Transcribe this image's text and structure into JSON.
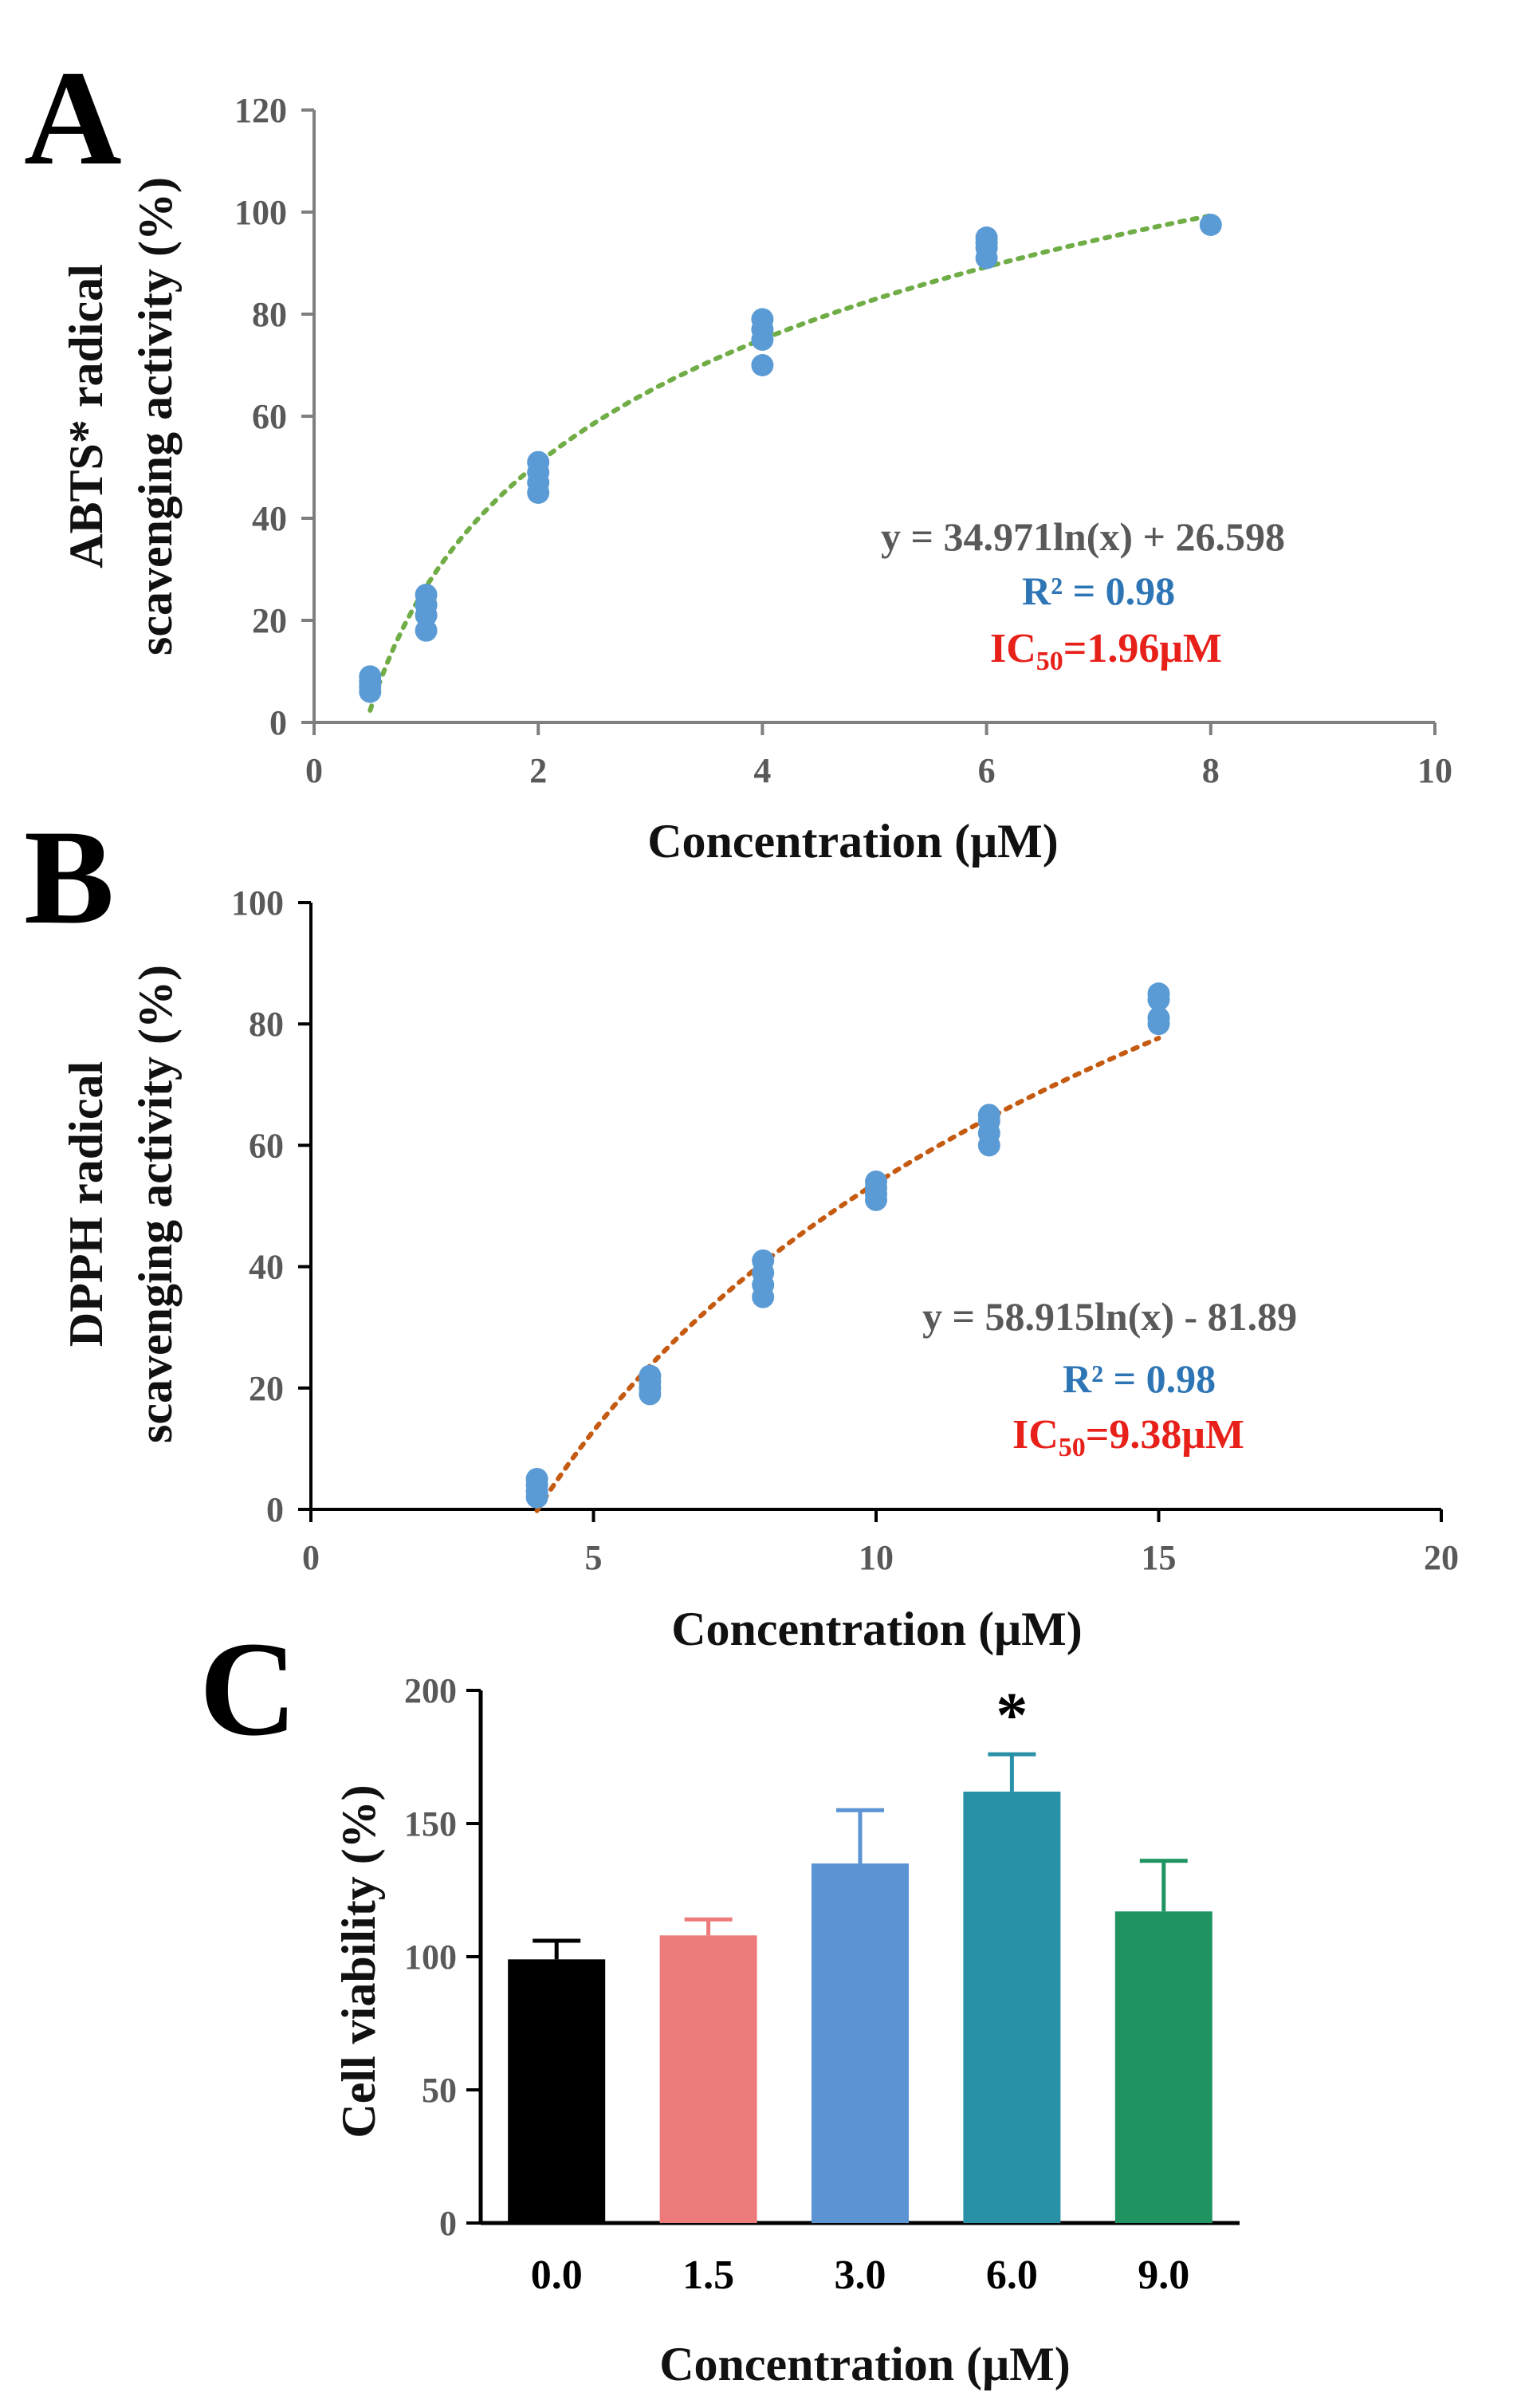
{
  "colors": {
    "point": "#5b9bd5",
    "trend_a": "#70ad47",
    "trend_b": "#c55a11",
    "bar_error": "#000000"
  },
  "chart_data": [
    {
      "panel": "A",
      "type": "scatter",
      "title": "",
      "xlabel": "Concentration (μM)",
      "ylabel": [
        "ABTS* radical",
        "scavenging activity (%)"
      ],
      "xlim": [
        0,
        10
      ],
      "ylim": [
        0,
        120
      ],
      "xticks": [
        0,
        2,
        4,
        6,
        8,
        10
      ],
      "yticks": [
        0,
        20,
        40,
        60,
        80,
        100,
        120
      ],
      "series": [
        {
          "name": "ABTS* scavenging",
          "points": [
            [
              0.5,
              6
            ],
            [
              0.5,
              7
            ],
            [
              0.5,
              8
            ],
            [
              0.5,
              9
            ],
            [
              1,
              18
            ],
            [
              1,
              21
            ],
            [
              1,
              23
            ],
            [
              1,
              25
            ],
            [
              2,
              45
            ],
            [
              2,
              47
            ],
            [
              2,
              49
            ],
            [
              2,
              51
            ],
            [
              4,
              70
            ],
            [
              4,
              75
            ],
            [
              4,
              77
            ],
            [
              4,
              79
            ],
            [
              6,
              91
            ],
            [
              6,
              93
            ],
            [
              6,
              94
            ],
            [
              6,
              95
            ],
            [
              8,
              97.5
            ]
          ]
        }
      ],
      "trendline": {
        "type": "log",
        "a": 34.971,
        "b": 26.598,
        "x_range": [
          0.5,
          8
        ]
      },
      "annotations": {
        "equation": "y = 34.971ln(x) + 26.598",
        "r2": "R² = 0.98",
        "ic50_prefix": "IC",
        "ic50_sub": "50",
        "ic50_value": "=1.96μM"
      }
    },
    {
      "panel": "B",
      "type": "scatter",
      "title": "",
      "xlabel": "Concentration (μM)",
      "ylabel": [
        "DPPH radical",
        "scavenging activity (%)"
      ],
      "xlim": [
        0,
        20
      ],
      "ylim": [
        0,
        100
      ],
      "xticks": [
        0,
        5,
        10,
        15,
        20
      ],
      "yticks": [
        0,
        20,
        40,
        60,
        80,
        100
      ],
      "series": [
        {
          "name": "DPPH scavenging",
          "points": [
            [
              4,
              2
            ],
            [
              4,
              3
            ],
            [
              4,
              4
            ],
            [
              4,
              5
            ],
            [
              6,
              19
            ],
            [
              6,
              20
            ],
            [
              6,
              21
            ],
            [
              6,
              22
            ],
            [
              8,
              35
            ],
            [
              8,
              37
            ],
            [
              8,
              39
            ],
            [
              8,
              41
            ],
            [
              10,
              51
            ],
            [
              10,
              52
            ],
            [
              10,
              53
            ],
            [
              10,
              54
            ],
            [
              12,
              60
            ],
            [
              12,
              62
            ],
            [
              12,
              64
            ],
            [
              12,
              65
            ],
            [
              15,
              80
            ],
            [
              15,
              81
            ],
            [
              15,
              84
            ],
            [
              15,
              85
            ]
          ]
        }
      ],
      "trendline": {
        "type": "log",
        "a": 58.915,
        "b": -81.89,
        "x_range": [
          4,
          15
        ]
      },
      "annotations": {
        "equation": "y = 58.915ln(x) - 81.89",
        "r2": "R² = 0.98",
        "ic50_prefix": "IC",
        "ic50_sub": "50",
        "ic50_value": "=9.38μM"
      }
    },
    {
      "panel": "C",
      "type": "bar",
      "title": "",
      "xlabel": "Concentration (μM)",
      "ylabel": "Cell viability (%)",
      "ylim": [
        0,
        200
      ],
      "yticks": [
        0,
        50,
        100,
        150,
        200
      ],
      "categories": [
        "0.0",
        "1.5",
        "3.0",
        "6.0",
        "9.0"
      ],
      "values": [
        99,
        108,
        135,
        162,
        117
      ],
      "errors": [
        7,
        6,
        20,
        14,
        19
      ],
      "bar_colors": [
        "#000000",
        "#ee7b7b",
        "#5b93d3",
        "#2891a8",
        "#1f9460"
      ],
      "significance": [
        "",
        "",
        "",
        "*",
        ""
      ]
    }
  ]
}
